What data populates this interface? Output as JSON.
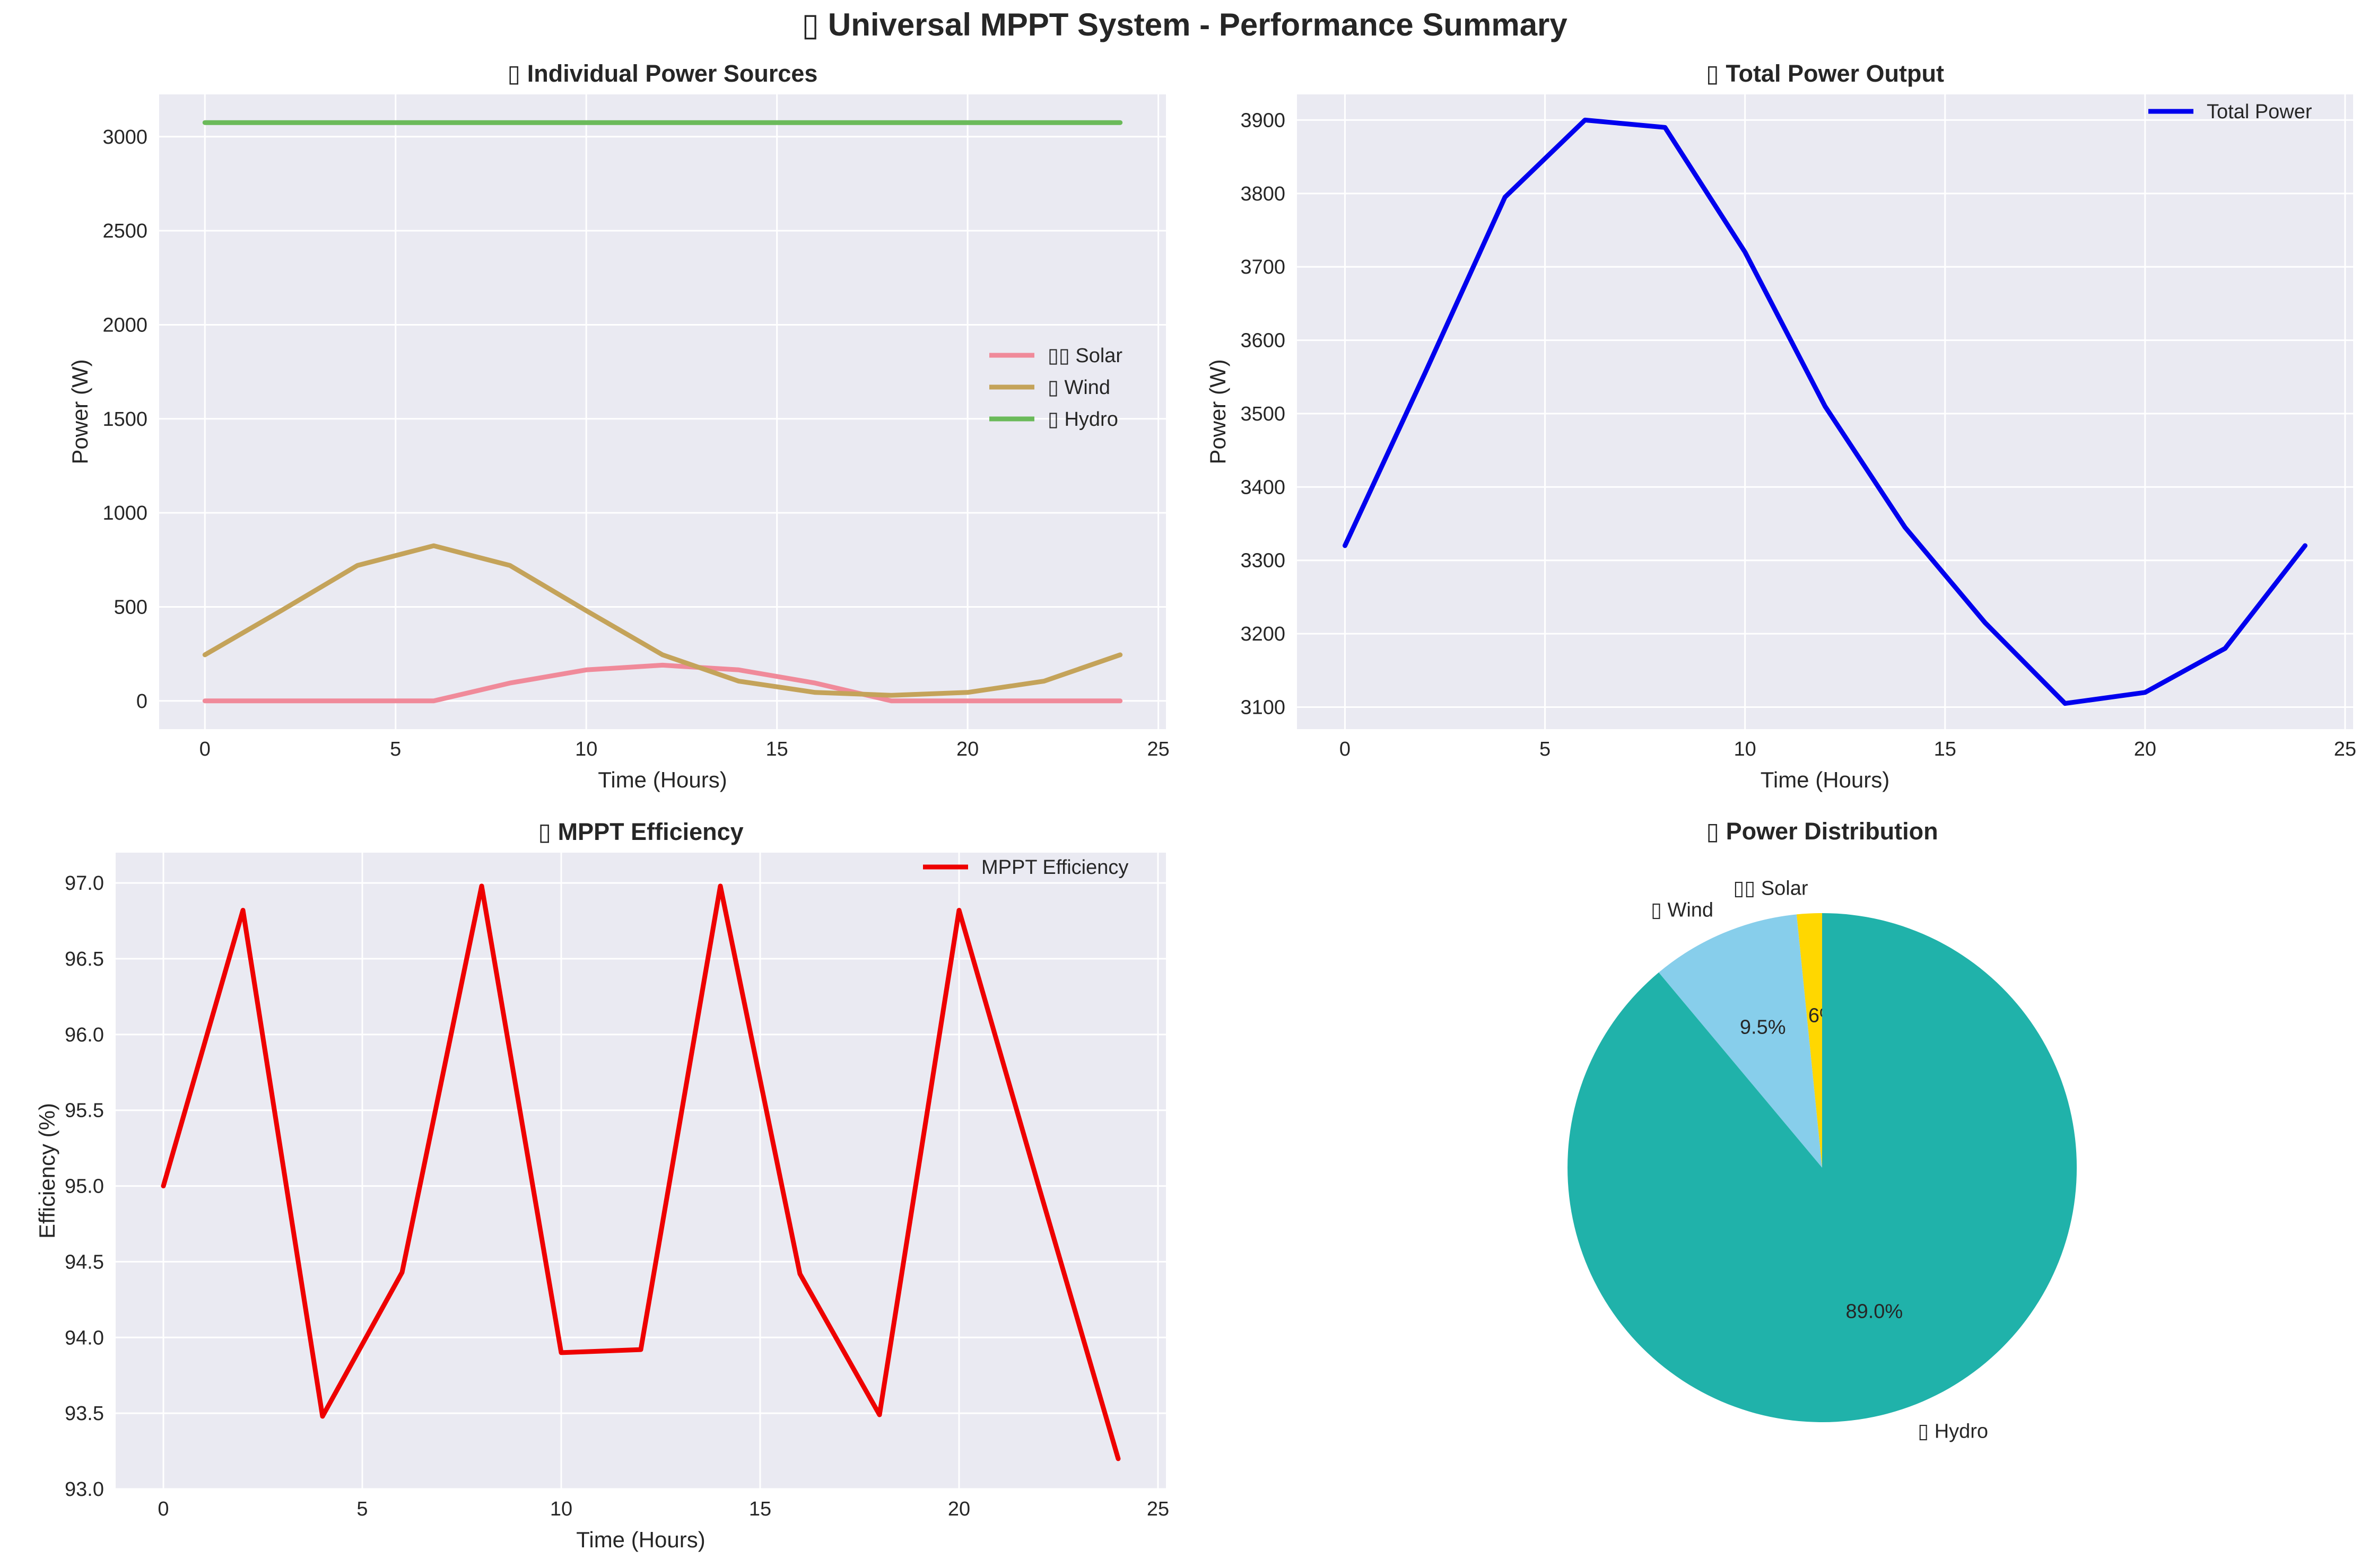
{
  "figure": {
    "title": "▯ Universal MPPT System - Performance Summary"
  },
  "chart_data": [
    {
      "type": "line",
      "title": "▯ Individual Power Sources",
      "xlabel": "Time (Hours)",
      "ylabel": "Power (W)",
      "xlim": [
        -1.2,
        25.2
      ],
      "ylim": [
        -150,
        3225
      ],
      "xticks": [
        0,
        5,
        10,
        15,
        20,
        25
      ],
      "yticks": [
        0,
        500,
        1000,
        1500,
        2000,
        2500,
        3000
      ],
      "grid": true,
      "legend": "center-right",
      "x": [
        0,
        2,
        4,
        6,
        8,
        10,
        12,
        14,
        16,
        18,
        20,
        22,
        24
      ],
      "series": [
        {
          "name": "▯▯ Solar",
          "color": "#f08a9a",
          "values": [
            0,
            0,
            0,
            0,
            95,
            165,
            190,
            165,
            95,
            0,
            0,
            0,
            0
          ]
        },
        {
          "name": "▯ Wind",
          "color": "#c4a35a",
          "values": [
            245,
            480,
            720,
            825,
            720,
            480,
            245,
            105,
            45,
            30,
            45,
            105,
            245
          ]
        },
        {
          "name": "▯ Hydro",
          "color": "#6bba5a",
          "values": [
            3075,
            3075,
            3075,
            3075,
            3075,
            3075,
            3075,
            3075,
            3075,
            3075,
            3075,
            3075,
            3075
          ]
        }
      ]
    },
    {
      "type": "line",
      "title": "▯ Total Power Output",
      "xlabel": "Time (Hours)",
      "ylabel": "Power (W)",
      "xlim": [
        -1.2,
        25.2
      ],
      "ylim": [
        3070,
        3935
      ],
      "xticks": [
        0,
        5,
        10,
        15,
        20,
        25
      ],
      "yticks": [
        3100,
        3200,
        3300,
        3400,
        3500,
        3600,
        3700,
        3800,
        3900
      ],
      "grid": true,
      "legend": "top-right",
      "x": [
        0,
        2,
        4,
        6,
        8,
        10,
        12,
        14,
        16,
        18,
        20,
        22,
        24
      ],
      "series": [
        {
          "name": "Total Power",
          "color": "#0000ee",
          "values": [
            3320,
            3555,
            3795,
            3900,
            3890,
            3720,
            3510,
            3345,
            3215,
            3105,
            3120,
            3180,
            3320
          ]
        }
      ]
    },
    {
      "type": "line",
      "title": "▯ MPPT Efficiency",
      "xlabel": "Time (Hours)",
      "ylabel": "Efficiency (%)",
      "xlim": [
        -1.2,
        25.2
      ],
      "ylim": [
        93.0,
        97.2
      ],
      "xticks": [
        0,
        5,
        10,
        15,
        20,
        25
      ],
      "yticks": [
        "93.0",
        "93.5",
        "94.0",
        "94.5",
        "95.0",
        "95.5",
        "96.0",
        "96.5",
        "97.0"
      ],
      "grid": true,
      "legend": "top-right",
      "x": [
        0,
        2,
        4,
        6,
        8,
        10,
        12,
        14,
        16,
        18,
        20,
        22,
        24
      ],
      "series": [
        {
          "name": "MPPT Efficiency",
          "color": "#ee0000",
          "values": [
            95.0,
            96.82,
            93.48,
            94.43,
            96.98,
            93.9,
            93.92,
            96.98,
            94.42,
            93.49,
            96.82,
            95.0,
            93.2
          ]
        }
      ]
    },
    {
      "type": "pie",
      "title": "▯ Power Distribution",
      "slices": [
        {
          "label": "▯▯ Solar",
          "value": 1.6,
          "pct": "1.6%",
          "color": "#ffd700"
        },
        {
          "label": "▯ Wind",
          "value": 9.5,
          "pct": "9.5%",
          "color": "#87ceeb"
        },
        {
          "label": "▯ Hydro",
          "value": 89.0,
          "pct": "89.0%",
          "color": "#20b2aa"
        }
      ]
    }
  ]
}
